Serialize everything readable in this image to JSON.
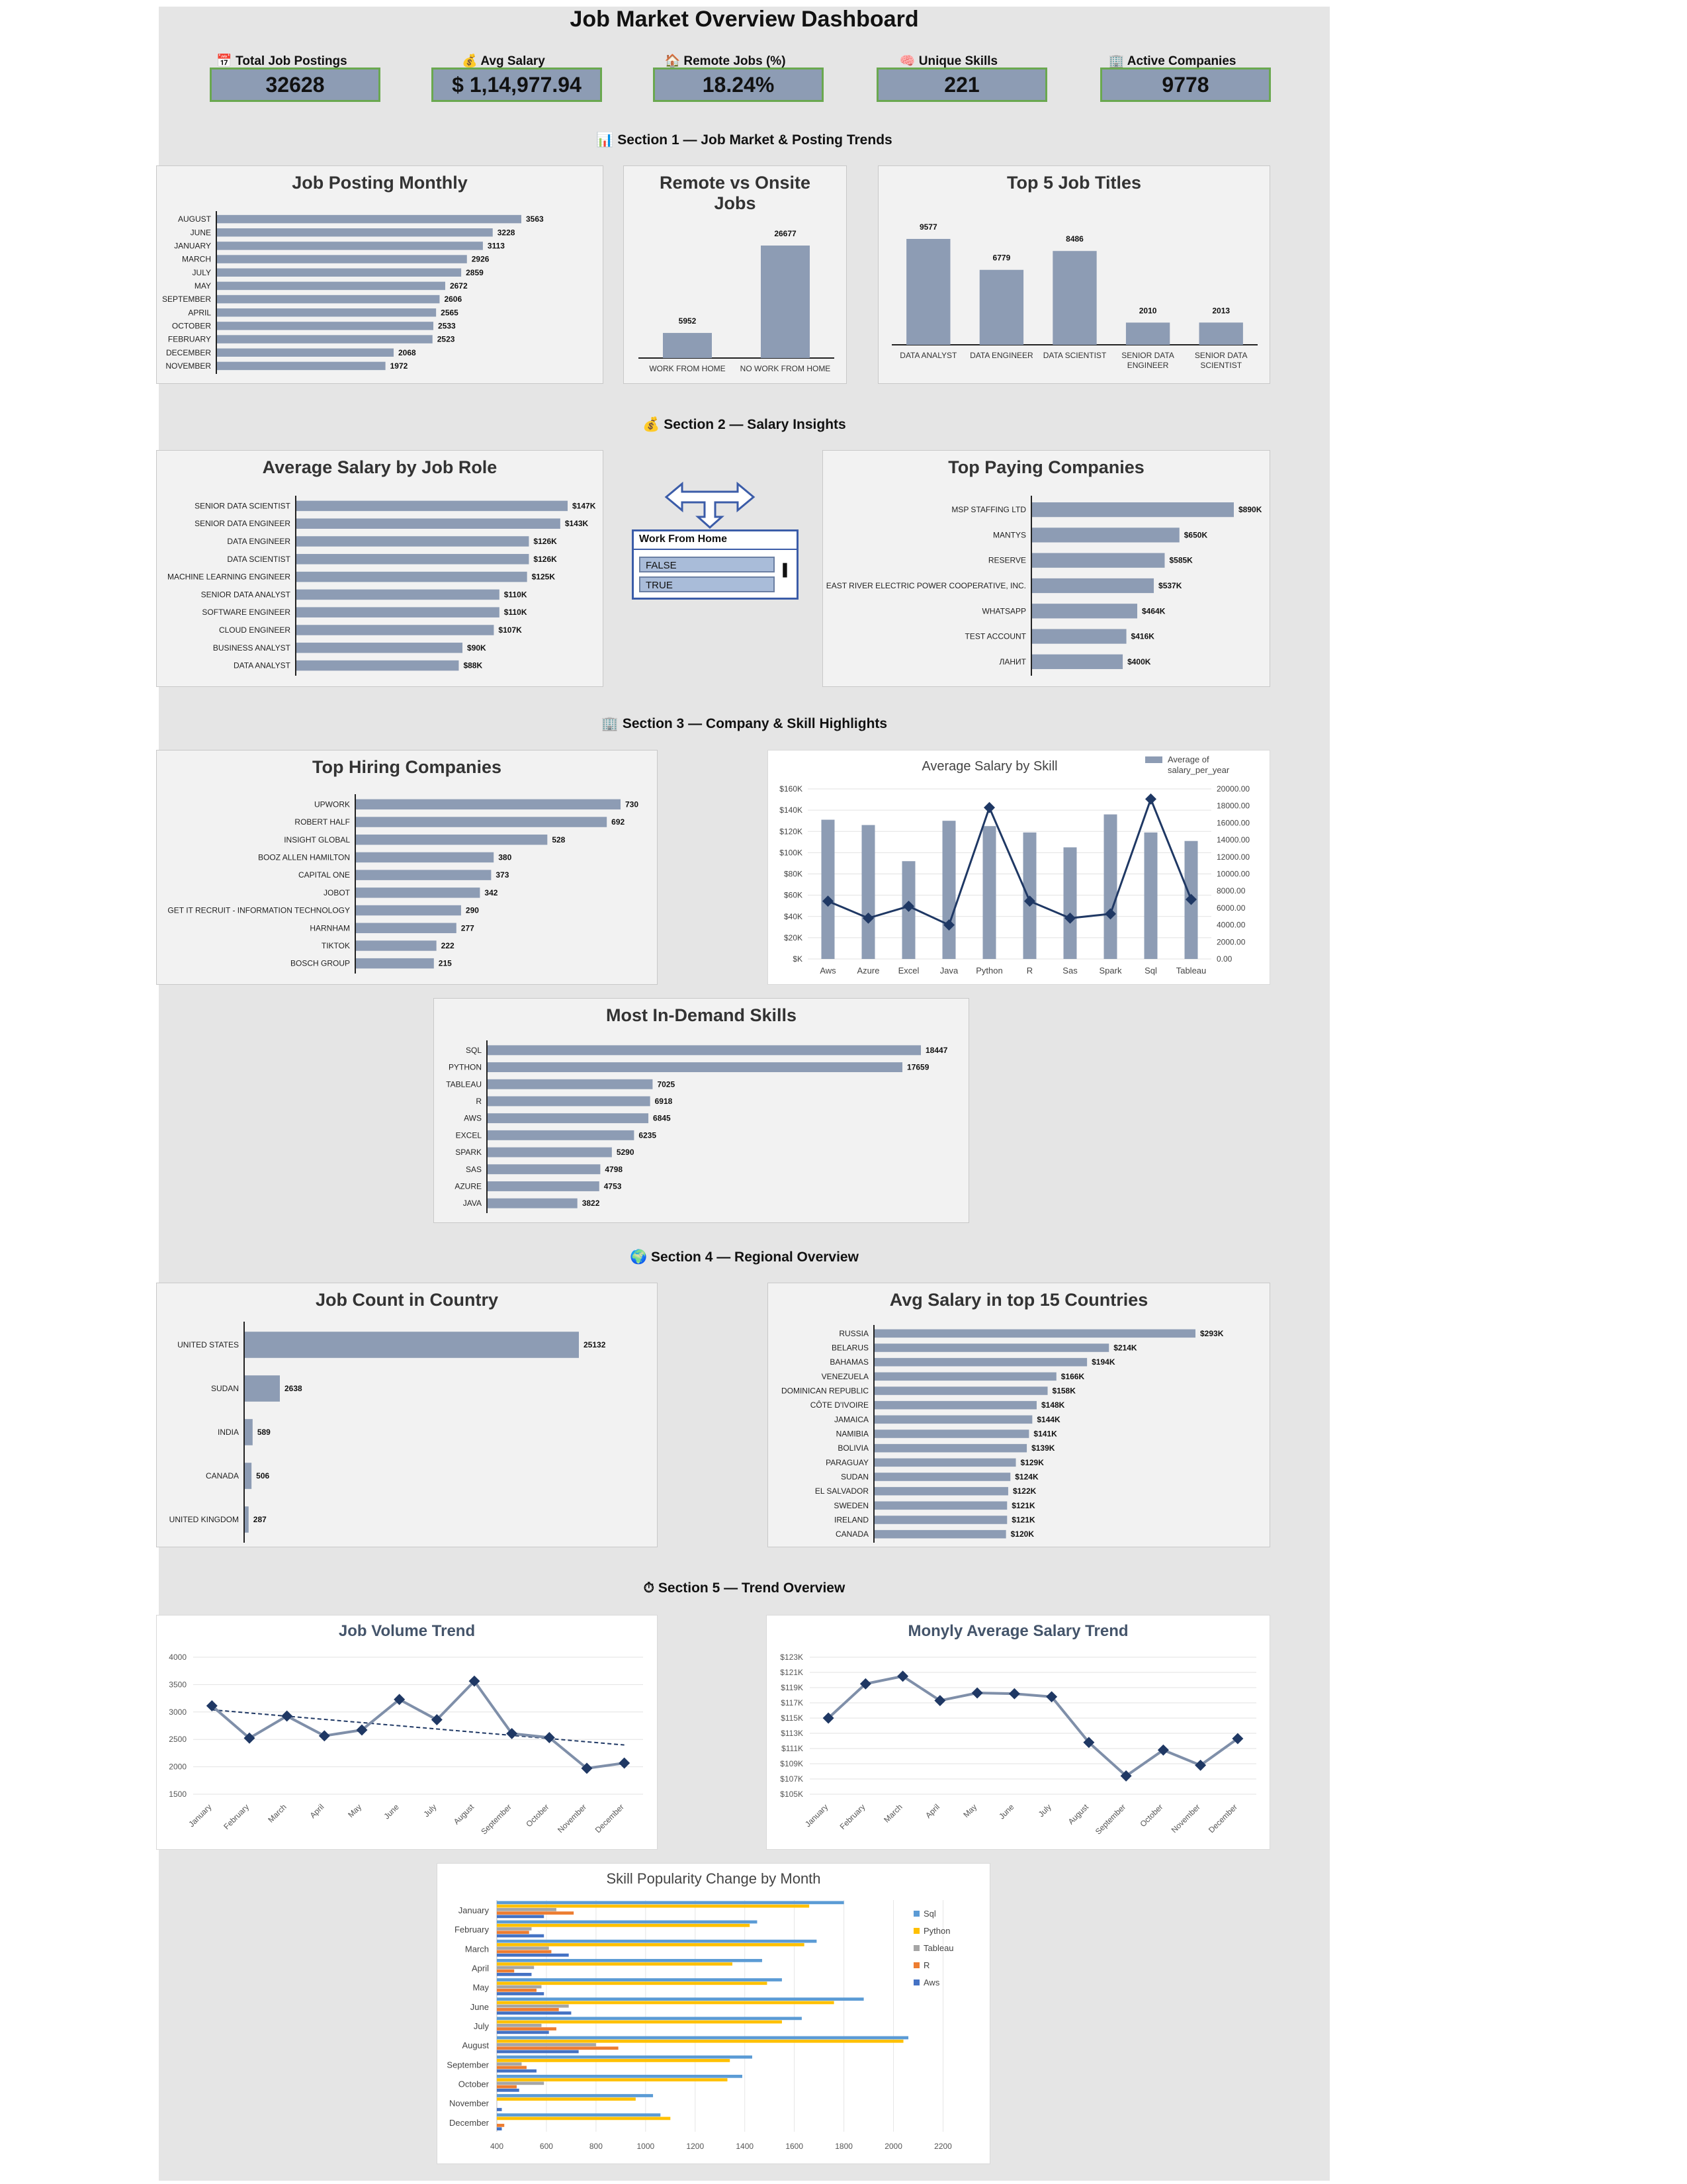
{
  "dashboard": {
    "title": "Job Market Overview Dashboard",
    "kpis": [
      {
        "label": "📅 Total Job Postings",
        "value": "32628"
      },
      {
        "label": "💰 Avg Salary",
        "value": "$ 1,14,977.94"
      },
      {
        "label": "🏠 Remote Jobs (%)",
        "value": "18.24%"
      },
      {
        "label": "🧠 Unique Skills",
        "value": "221"
      },
      {
        "label": "🏢 Active Companies",
        "value": "9778"
      }
    ],
    "sections": [
      "📊 Section 1 — Job Market & Posting Trends",
      "💰 Section 2 — Salary Insights",
      "🏢 Section 3 — Company & Skill Highlights",
      "🌍 Section 4 — Regional Overview",
      "⏱ Section 5 — Trend Overview"
    ],
    "slicer": {
      "title": "Work From Home",
      "items": [
        "FALSE",
        "TRUE"
      ]
    },
    "colors": {
      "bar": "#8d9cb4",
      "dark": "#1f3864",
      "line": "#7f8fa9",
      "kpi_border": "#6aa84f"
    }
  },
  "chart_data": [
    {
      "id": "job_posting_monthly",
      "type": "bar",
      "orientation": "horizontal",
      "title": "Job Posting Monthly",
      "categories": [
        "AUGUST",
        "JUNE",
        "JANUARY",
        "MARCH",
        "JULY",
        "MAY",
        "SEPTEMBER",
        "APRIL",
        "OCTOBER",
        "FEBRUARY",
        "DECEMBER",
        "NOVEMBER"
      ],
      "values": [
        3563,
        3228,
        3113,
        2926,
        2859,
        2672,
        2606,
        2565,
        2533,
        2523,
        2068,
        1972
      ],
      "labels": [
        "3563",
        "3228",
        "3113",
        "2926",
        "2859",
        "2672",
        "2606",
        "2565",
        "2533",
        "2523",
        "2068",
        "1972"
      ]
    },
    {
      "id": "remote_vs_onsite",
      "type": "bar",
      "title": "Remote vs Onsite Jobs",
      "categories": [
        "WORK FROM HOME",
        "NO WORK FROM HOME"
      ],
      "values": [
        5952,
        26677
      ],
      "labels": [
        "5952",
        "26677"
      ]
    },
    {
      "id": "top5_titles",
      "type": "bar",
      "title": "Top 5 Job Titles",
      "categories": [
        "DATA ANALYST",
        "DATA ENGINEER",
        "DATA SCIENTIST",
        "SENIOR DATA ENGINEER",
        "SENIOR DATA SCIENTIST"
      ],
      "values": [
        9577,
        6779,
        8486,
        2010,
        2013
      ],
      "labels": [
        "9577",
        "6779",
        "8486",
        "2010",
        "2013"
      ]
    },
    {
      "id": "avg_salary_role",
      "type": "bar",
      "orientation": "horizontal",
      "title": "Average Salary by Job Role",
      "categories": [
        "SENIOR DATA SCIENTIST",
        "SENIOR DATA ENGINEER",
        "DATA ENGINEER",
        "DATA SCIENTIST",
        "MACHINE LEARNING ENGINEER",
        "SENIOR DATA ANALYST",
        "SOFTWARE ENGINEER",
        "CLOUD ENGINEER",
        "BUSINESS ANALYST",
        "DATA ANALYST"
      ],
      "values": [
        147,
        143,
        126,
        126,
        125,
        110,
        110,
        107,
        90,
        88
      ],
      "labels": [
        "$147K",
        "$143K",
        "$126K",
        "$126K",
        "$125K",
        "$110K",
        "$110K",
        "$107K",
        "$90K",
        "$88K"
      ]
    },
    {
      "id": "top_paying_companies",
      "type": "bar",
      "orientation": "horizontal",
      "title": "Top Paying Companies",
      "categories": [
        "MSP STAFFING  LTD",
        "MANTYS",
        "RESERVE",
        "EAST RIVER ELECTRIC POWER COOPERATIVE, INC.",
        "WHATSAPP",
        "TEST ACCOUNT",
        "ЛАНИТ"
      ],
      "values": [
        890,
        650,
        585,
        537,
        464,
        416,
        400
      ],
      "labels": [
        "$890K",
        "$650K",
        "$585K",
        "$537K",
        "$464K",
        "$416K",
        "$400K"
      ]
    },
    {
      "id": "top_hiring_companies",
      "type": "bar",
      "orientation": "horizontal",
      "title": "Top Hiring Companies",
      "categories": [
        "UPWORK",
        "ROBERT HALF",
        "INSIGHT GLOBAL",
        "BOOZ ALLEN HAMILTON",
        "CAPITAL ONE",
        "JOBOT",
        "GET IT RECRUIT - INFORMATION TECHNOLOGY",
        "HARNHAM",
        "TIKTOK",
        "BOSCH GROUP"
      ],
      "values": [
        730,
        692,
        528,
        380,
        373,
        342,
        290,
        277,
        222,
        215
      ],
      "labels": [
        "730",
        "692",
        "528",
        "380",
        "373",
        "342",
        "290",
        "277",
        "222",
        "215"
      ]
    },
    {
      "id": "avg_salary_by_skill",
      "type": "bar",
      "title": "Average Salary by Skill",
      "categories": [
        "Aws",
        "Azure",
        "Excel",
        "Java",
        "Python",
        "R",
        "Sas",
        "Spark",
        "Sql",
        "Tableau"
      ],
      "series": [
        {
          "name": "Average of salary_per_year",
          "values": [
            131000,
            126000,
            92000,
            130000,
            125000,
            119000,
            105000,
            136000,
            119000,
            111000
          ]
        },
        {
          "values": [
            6800,
            4800,
            6200,
            4000,
            17800,
            6800,
            4800,
            5300,
            18800,
            7000
          ]
        }
      ],
      "left_ticks": [
        "$160K",
        "$140K",
        "$120K",
        "$100K",
        "$80K",
        "$60K",
        "$40K",
        "$20K",
        "$K"
      ],
      "right_ticks": [
        "20000.00",
        "18000.00",
        "16000.00",
        "14000.00",
        "12000.00",
        "10000.00",
        "8000.00",
        "6000.00",
        "4000.00",
        "2000.00",
        "0.00"
      ],
      "ylim": [
        0,
        160000
      ],
      "y2lim": [
        0,
        20000
      ],
      "legend": "top-right"
    },
    {
      "id": "in_demand_skills",
      "type": "bar",
      "orientation": "horizontal",
      "title": "Most In-Demand Skills",
      "categories": [
        "SQL",
        "PYTHON",
        "TABLEAU",
        "R",
        "AWS",
        "EXCEL",
        "SPARK",
        "SAS",
        "AZURE",
        "JAVA"
      ],
      "values": [
        18447,
        17659,
        7025,
        6918,
        6845,
        6235,
        5290,
        4798,
        4753,
        3822
      ],
      "labels": [
        "18447",
        "17659",
        "7025",
        "6918",
        "6845",
        "6235",
        "5290",
        "4798",
        "4753",
        "3822"
      ]
    },
    {
      "id": "job_count_country",
      "type": "bar",
      "orientation": "horizontal",
      "title": "Job Count in Country",
      "categories": [
        "UNITED STATES",
        "SUDAN",
        "INDIA",
        "CANADA",
        "UNITED KINGDOM"
      ],
      "values": [
        25132,
        2638,
        589,
        506,
        287
      ],
      "labels": [
        "25132",
        "2638",
        "589",
        "506",
        "287"
      ]
    },
    {
      "id": "avg_salary_countries",
      "type": "bar",
      "orientation": "horizontal",
      "title": "Avg Salary in top 15 Countries",
      "categories": [
        "RUSSIA",
        "BELARUS",
        "BAHAMAS",
        "VENEZUELA",
        "DOMINICAN REPUBLIC",
        "CÔTE D'IVOIRE",
        "JAMAICA",
        "NAMIBIA",
        "BOLIVIA",
        "PARAGUAY",
        "SUDAN",
        "EL SALVADOR",
        "SWEDEN",
        "IRELAND",
        "CANADA"
      ],
      "values": [
        293,
        214,
        194,
        166,
        158,
        148,
        144,
        141,
        139,
        129,
        124,
        122,
        121,
        121,
        120
      ],
      "labels": [
        "$293K",
        "$214K",
        "$194K",
        "$166K",
        "$158K",
        "$148K",
        "$144K",
        "$141K",
        "$139K",
        "$129K",
        "$124K",
        "$122K",
        "$121K",
        "$121K",
        "$120K"
      ]
    },
    {
      "id": "job_volume_trend",
      "type": "line",
      "title": "Job Volume Trend",
      "categories": [
        "January",
        "February",
        "March",
        "April",
        "May",
        "June",
        "July",
        "August",
        "September",
        "October",
        "November",
        "December"
      ],
      "values": [
        3113,
        2523,
        2926,
        2565,
        2672,
        3228,
        2859,
        3563,
        2606,
        2533,
        1972,
        2068
      ],
      "trendline": true,
      "ylim": [
        1500,
        4000
      ],
      "yticks": [
        "4000",
        "3500",
        "3000",
        "2500",
        "2000",
        "1500"
      ]
    },
    {
      "id": "monthly_salary_trend",
      "type": "line",
      "title": "Monyly Average Salary Trend",
      "categories": [
        "January",
        "February",
        "March",
        "April",
        "May",
        "June",
        "July",
        "August",
        "September",
        "October",
        "November",
        "December"
      ],
      "values": [
        115000,
        119500,
        120500,
        117300,
        118300,
        118200,
        117800,
        111800,
        107400,
        110800,
        108800,
        112300
      ],
      "ylim": [
        105000,
        123000
      ],
      "yticks": [
        "$123K",
        "$121K",
        "$119K",
        "$117K",
        "$115K",
        "$113K",
        "$111K",
        "$109K",
        "$107K",
        "$105K"
      ]
    },
    {
      "id": "skill_popularity",
      "type": "bar",
      "orientation": "horizontal",
      "title": "Skill Popularity Change by Month",
      "categories": [
        "January",
        "February",
        "March",
        "April",
        "May",
        "June",
        "July",
        "August",
        "September",
        "October",
        "November",
        "December"
      ],
      "series": [
        {
          "name": "Sql",
          "color": "#5b9bd5",
          "values": [
            1800,
            1450,
            1690,
            1470,
            1550,
            1880,
            1630,
            2060,
            1430,
            1390,
            1030,
            1060
          ]
        },
        {
          "name": "Python",
          "color": "#ffc000",
          "values": [
            1660,
            1420,
            1640,
            1350,
            1490,
            1760,
            1550,
            2040,
            1340,
            1330,
            960,
            1100
          ]
        },
        {
          "name": "Tableau",
          "color": "#a5a5a5",
          "values": [
            640,
            540,
            610,
            550,
            580,
            690,
            580,
            800,
            500,
            590,
            380,
            400
          ]
        },
        {
          "name": "R",
          "color": "#ed7d31",
          "values": [
            710,
            530,
            620,
            470,
            560,
            650,
            640,
            890,
            520,
            480,
            380,
            430
          ]
        },
        {
          "name": "Aws",
          "color": "#4472c4",
          "values": [
            590,
            590,
            690,
            540,
            590,
            700,
            610,
            730,
            560,
            490,
            420,
            420
          ]
        }
      ],
      "xlim": [
        400,
        2200
      ],
      "xticks": [
        "400",
        "600",
        "800",
        "1000",
        "1200",
        "1400",
        "1600",
        "1800",
        "2000",
        "2200"
      ],
      "legend": "right"
    }
  ]
}
